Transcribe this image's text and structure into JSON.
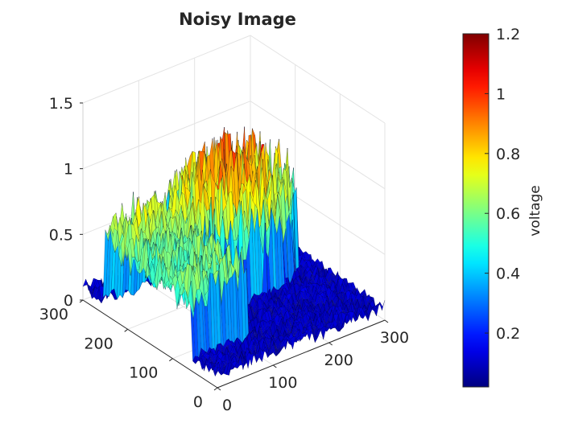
{
  "chart_data": {
    "type": "surface",
    "title": "Noisy Image",
    "x_axis": {
      "label": "",
      "ticks": [
        "0",
        "100",
        "200",
        "300"
      ],
      "range": [
        0,
        300
      ]
    },
    "y_axis": {
      "label": "",
      "ticks": [
        "0",
        "100",
        "200",
        "300"
      ],
      "range": [
        0,
        300
      ]
    },
    "z_axis": {
      "label": "",
      "ticks": [
        "0",
        "0.5",
        "1",
        "1.5"
      ],
      "range": [
        0,
        1.5
      ]
    },
    "colorbar": {
      "label": "voltage",
      "colormap": "jet",
      "range": [
        0.02,
        1.2
      ],
      "ticks": [
        "0.2",
        "0.4",
        "0.6",
        "0.8",
        "1",
        "1.2"
      ],
      "tick_values": [
        0.2,
        0.4,
        0.6,
        0.8,
        1.0,
        1.2
      ]
    },
    "grid": true,
    "surface_description": {
      "background_level": 0.1,
      "regions": [
        {
          "name": "left plateau",
          "x_range": [
            0,
            100
          ],
          "y_range": [
            60,
            250
          ],
          "level": 0.7,
          "noise": 0.2
        },
        {
          "name": "right dome",
          "x_range": [
            90,
            290
          ],
          "y_range": [
            130,
            280
          ],
          "level": 0.8,
          "peak": 1.2,
          "noise": 0.2
        }
      ]
    }
  }
}
